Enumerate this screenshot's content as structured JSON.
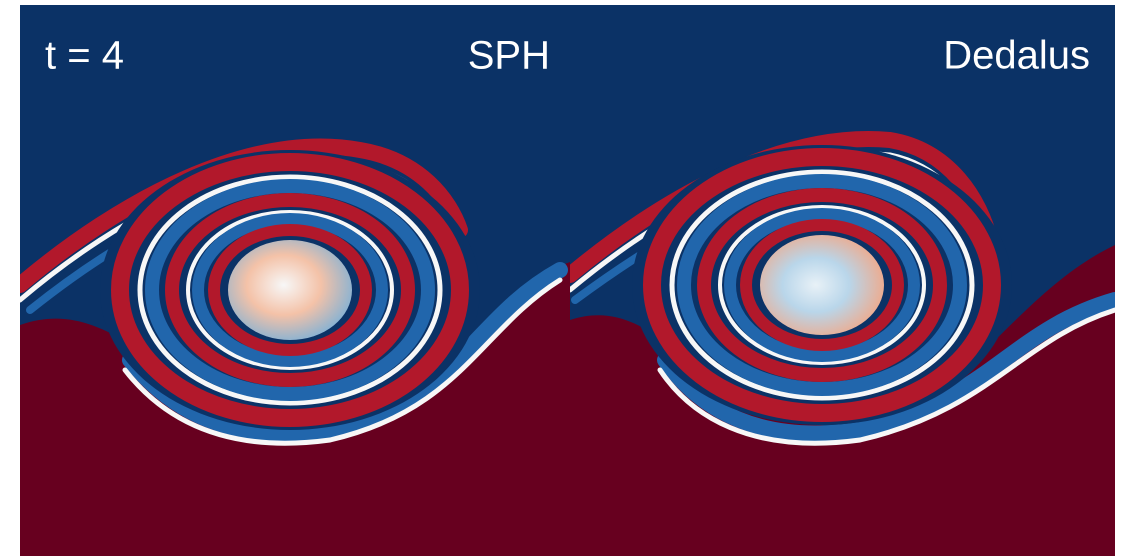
{
  "labels": {
    "time": "t = 4",
    "left": "SPH",
    "right": "Dedalus"
  }
}
